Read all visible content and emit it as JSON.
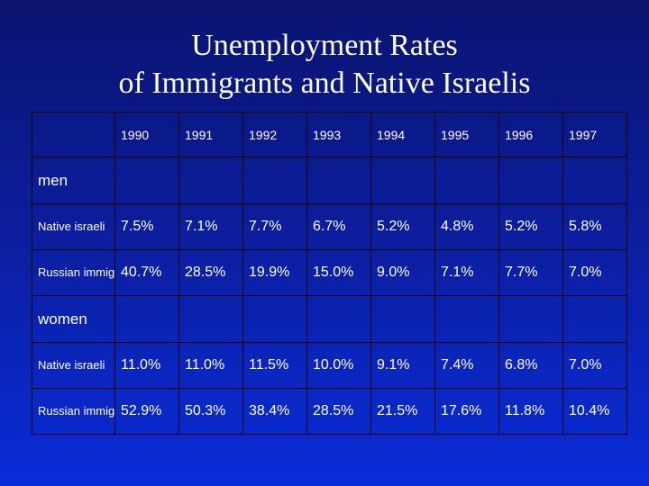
{
  "title": {
    "line1": "Unemployment Rates",
    "line2": "of Immigrants and Native Israelis"
  },
  "table": {
    "years": [
      "1990",
      "1991",
      "1992",
      "1993",
      "1994",
      "1995",
      "1996",
      "1997"
    ],
    "sections": [
      {
        "label": "men",
        "rows": [
          {
            "label": "Native israeli",
            "values": [
              "7.5%",
              "7.1%",
              "7.7%",
              "6.7%",
              "5.2%",
              "4.8%",
              "5.2%",
              "5.8%"
            ]
          },
          {
            "label": "Russian immigrant",
            "values": [
              "40.7%",
              "28.5%",
              "19.9%",
              "15.0%",
              "9.0%",
              "7.1%",
              "7.7%",
              "7.0%"
            ]
          }
        ]
      },
      {
        "label": "women",
        "rows": [
          {
            "label": "Native israeli",
            "values": [
              "11.0%",
              "11.0%",
              "11.5%",
              "10.0%",
              "9.1%",
              "7.4%",
              "6.8%",
              "7.0%"
            ]
          },
          {
            "label": "Russian immigrant",
            "values": [
              "52.9%",
              "50.3%",
              "38.4%",
              "28.5%",
              "21.5%",
              "17.6%",
              "11.8%",
              "10.4%"
            ]
          }
        ]
      }
    ]
  }
}
